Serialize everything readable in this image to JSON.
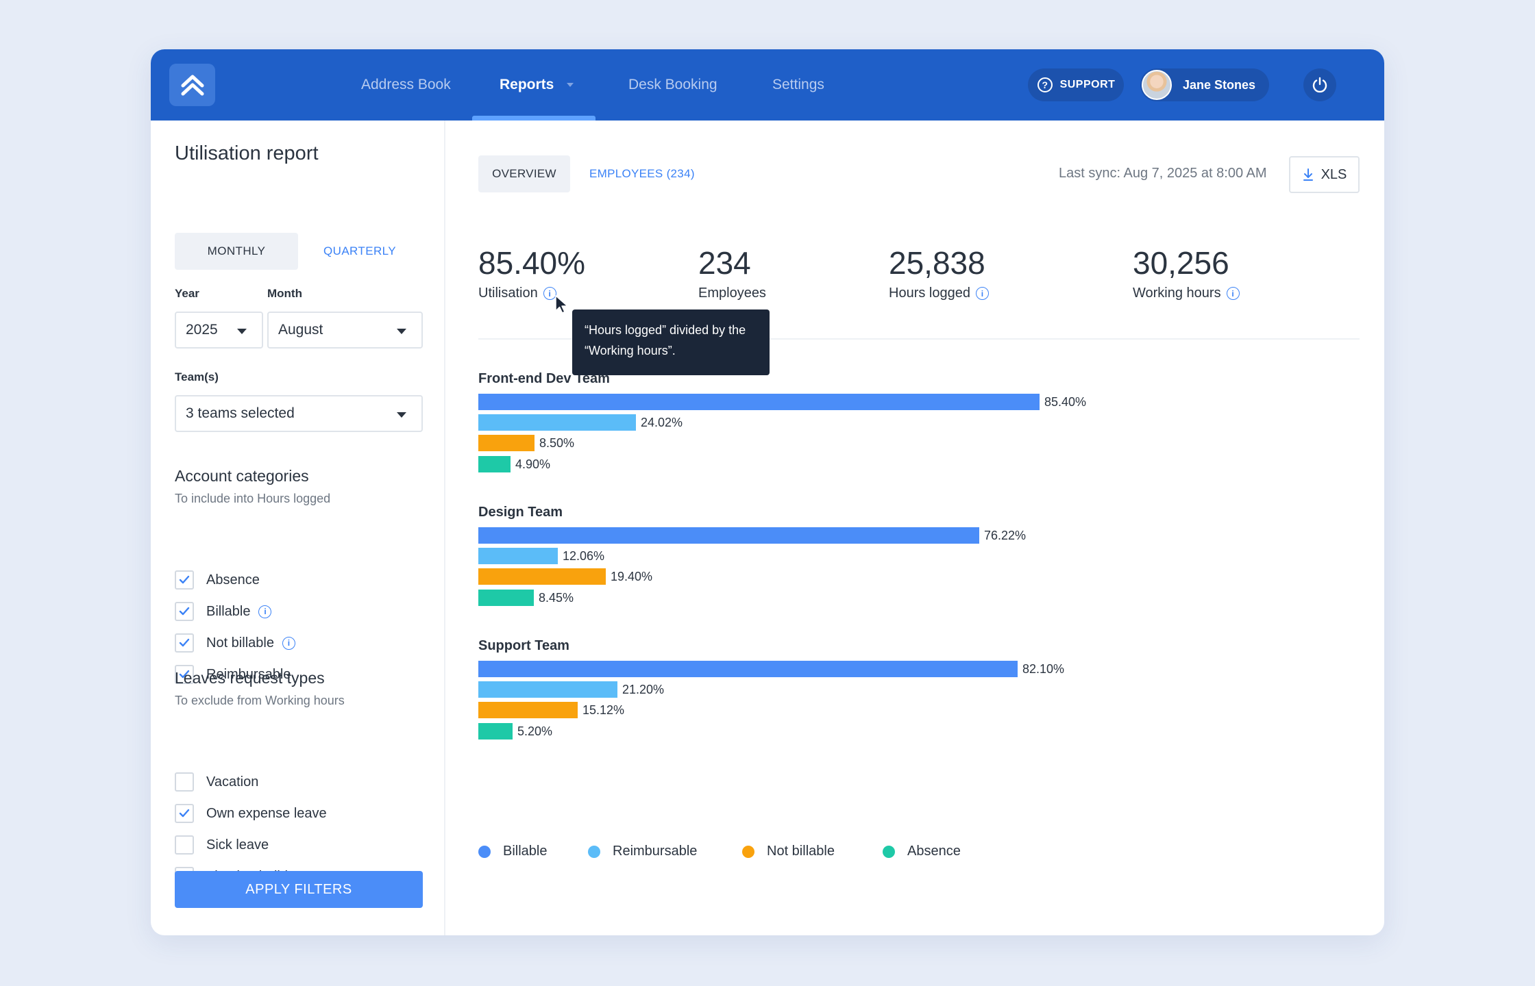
{
  "nav": {
    "items": [
      "Address Book",
      "Reports",
      "Desk Booking",
      "Settings"
    ],
    "active": "Reports",
    "support_label": "SUPPORT",
    "user_name": "Jane Stones"
  },
  "sidebar": {
    "title": "Utilisation report",
    "period_tabs": {
      "monthly": "MONTHLY",
      "quarterly": "QUARTERLY"
    },
    "year": {
      "label": "Year",
      "value": "2025"
    },
    "month": {
      "label": "Month",
      "value": "August"
    },
    "teams": {
      "label": "Team(s)",
      "value": "3 teams selected"
    },
    "account_categories": {
      "title": "Account categories",
      "subtitle": "To include into Hours logged",
      "items": [
        {
          "label": "Absence",
          "checked": true,
          "info": false
        },
        {
          "label": "Billable",
          "checked": true,
          "info": true
        },
        {
          "label": "Not billable",
          "checked": true,
          "info": true
        },
        {
          "label": "Reimbursable",
          "checked": true,
          "info": false
        }
      ]
    },
    "leave_types": {
      "title": "Leaves request types",
      "subtitle": "To exclude from Working hours",
      "items": [
        {
          "label": "Vacation",
          "checked": false
        },
        {
          "label": "Own expense leave",
          "checked": true
        },
        {
          "label": "Sick leave",
          "checked": false
        },
        {
          "label": "Floating holidays",
          "checked": false
        }
      ]
    },
    "apply_label": "APPLY FILTERS"
  },
  "main": {
    "tabs": {
      "overview": "OVERVIEW",
      "employees": "EMPLOYEES (234)"
    },
    "last_sync": "Last sync: Aug 7, 2025 at 8:00 AM",
    "export_label": "XLS",
    "stats": [
      {
        "value": "85.40%",
        "label": "Utilisation",
        "info": true
      },
      {
        "value": "234",
        "label": "Employees",
        "info": false
      },
      {
        "value": "25,838",
        "label": "Hours logged",
        "info": true
      },
      {
        "value": "30,256",
        "label": "Working hours",
        "info": true
      }
    ],
    "tooltip": "“Hours logged” divided by the “Working hours”."
  },
  "colors": {
    "Billable": "#4b8df8",
    "Reimbursable": "#5bbcf8",
    "Not billable": "#f9a20d",
    "Absence": "#1ec9a7"
  },
  "chart_data": {
    "type": "bar",
    "orientation": "horizontal",
    "unit": "%",
    "categories": [
      "Front-end Dev Team",
      "Design Team",
      "Support Team"
    ],
    "series": [
      {
        "name": "Billable",
        "values": [
          85.4,
          76.22,
          82.1
        ],
        "labels": [
          "85.40%",
          "76.22%",
          "82.10%"
        ]
      },
      {
        "name": "Reimbursable",
        "values": [
          24.02,
          12.06,
          21.2
        ],
        "labels": [
          "24.02%",
          "12.06%",
          "21.20%"
        ]
      },
      {
        "name": "Not billable",
        "values": [
          8.5,
          19.4,
          15.12
        ],
        "labels": [
          "8.50%",
          "19.40%",
          "15.12%"
        ]
      },
      {
        "name": "Absence",
        "values": [
          4.9,
          8.45,
          5.2
        ],
        "labels": [
          "4.90%",
          "8.45%",
          "5.20%"
        ]
      }
    ],
    "legend": "bottom"
  }
}
